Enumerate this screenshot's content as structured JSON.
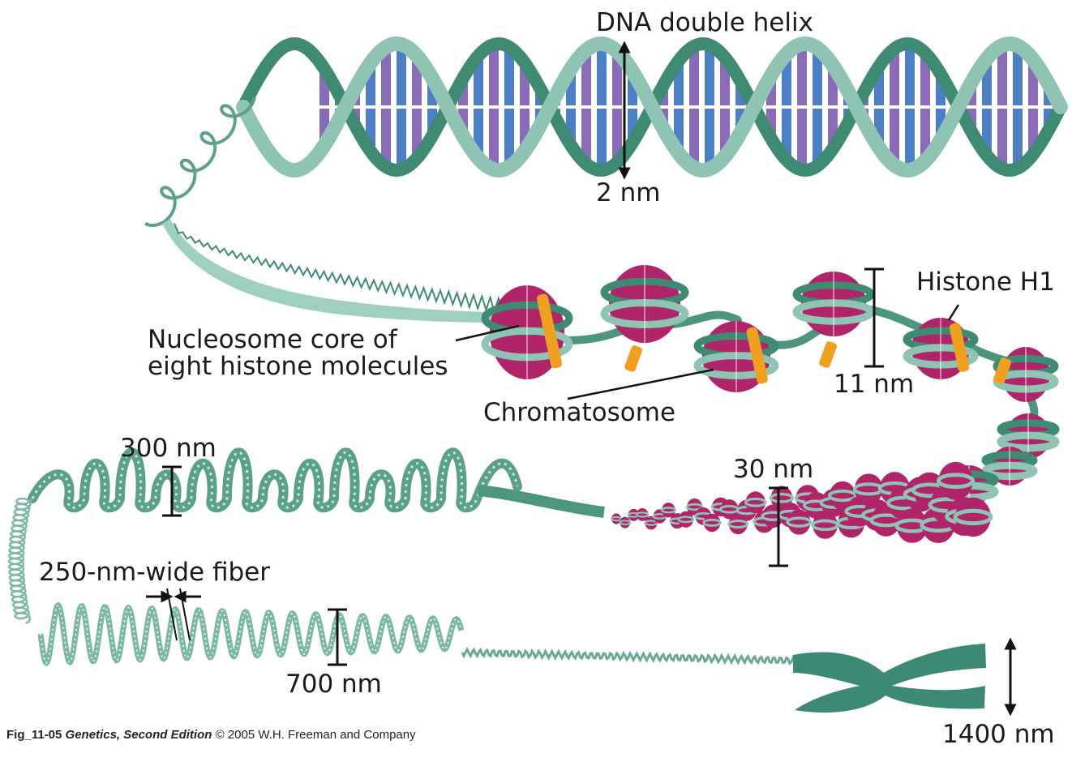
{
  "labels": {
    "dna_double_helix": "DNA double helix",
    "two_nm": "2 nm",
    "histone_h1": "Histone H1",
    "nucleosome_core_line1": "Nucleosome core of",
    "nucleosome_core_line2": "eight histone molecules",
    "eleven_nm": "11 nm",
    "chromatosome": "Chromatosome",
    "three_hundred_nm": "300 nm",
    "thirty_nm": "30 nm",
    "fiber_250": "250-nm-wide fiber",
    "seven_hundred_nm": "700 nm",
    "fourteen_hundred_nm": "1400 nm"
  },
  "caption": {
    "figure_id": "Fig_11-05",
    "book": "Genetics, Second Edition",
    "copyright": "© 2005 W.H. Freeman and Company"
  },
  "colors": {
    "strand_light": "#8fc4b4",
    "strand_dark": "#3f8a72",
    "base_purple": "#8a6bb8",
    "base_blue": "#4c7fc4",
    "histone_core": "#b0246a",
    "histone_h1": "#f0a020",
    "chromosome": "#3d8a74",
    "arrow": "#111111"
  }
}
